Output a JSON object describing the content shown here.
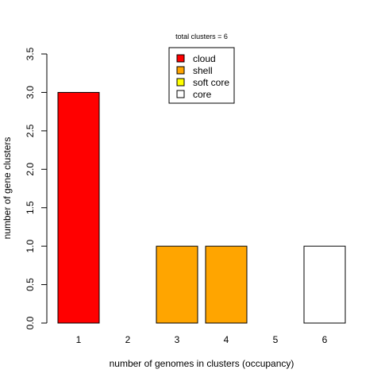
{
  "chart_data": {
    "type": "bar",
    "title": "total clusters = 6",
    "xlabel": "number of genomes in clusters (occupancy)",
    "ylabel": "number of gene clusters",
    "categories": [
      "1",
      "2",
      "3",
      "4",
      "5",
      "6"
    ],
    "values": [
      3,
      0,
      1,
      1,
      0,
      1
    ],
    "bar_colors": [
      "#ff0000",
      "#ff0000",
      "#ffa500",
      "#ffa500",
      "#ffffff",
      "#ffffff"
    ],
    "ylim": [
      0,
      3.5
    ],
    "yticks": [
      "0.0",
      "0.5",
      "1.0",
      "1.5",
      "2.0",
      "2.5",
      "3.0",
      "3.5"
    ],
    "grid": false,
    "legend": {
      "placement": "top-center",
      "entries": [
        {
          "label": "cloud",
          "color": "#ff0000"
        },
        {
          "label": "shell",
          "color": "#ffa500"
        },
        {
          "label": "soft core",
          "color": "#ffff00"
        },
        {
          "label": "core",
          "color": "#ffffff"
        }
      ]
    }
  }
}
